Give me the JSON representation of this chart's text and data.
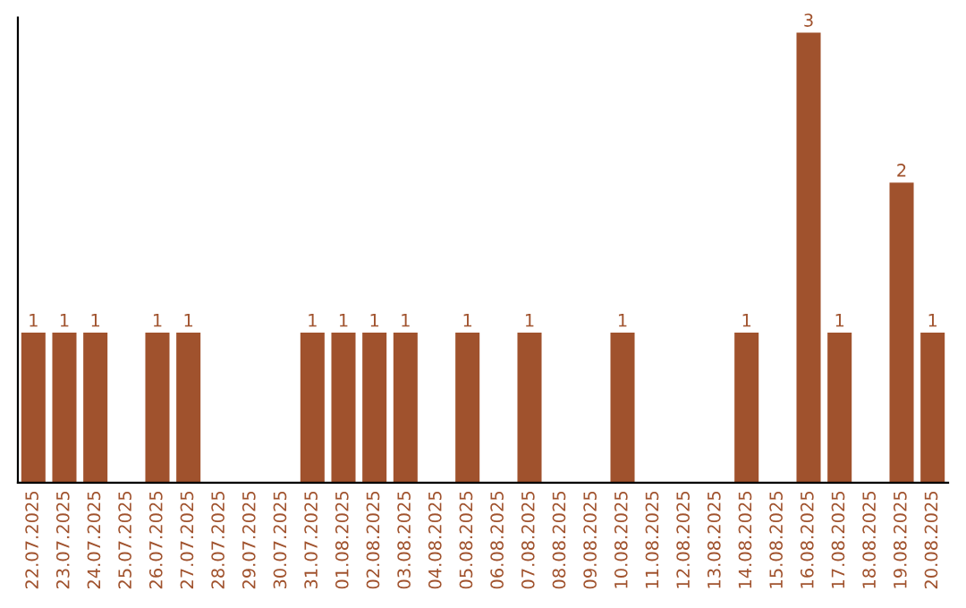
{
  "chart_data": {
    "type": "bar",
    "categories": [
      "22.07.2025",
      "23.07.2025",
      "24.07.2025",
      "25.07.2025",
      "26.07.2025",
      "27.07.2025",
      "28.07.2025",
      "29.07.2025",
      "30.07.2025",
      "31.07.2025",
      "01.08.2025",
      "02.08.2025",
      "03.08.2025",
      "04.08.2025",
      "05.08.2025",
      "06.08.2025",
      "07.08.2025",
      "08.08.2025",
      "09.08.2025",
      "10.08.2025",
      "11.08.2025",
      "12.08.2025",
      "13.08.2025",
      "14.08.2025",
      "15.08.2025",
      "16.08.2025",
      "17.08.2025",
      "18.08.2025",
      "19.08.2025",
      "20.08.2025"
    ],
    "values": [
      1,
      1,
      1,
      0,
      1,
      1,
      0,
      0,
      0,
      1,
      1,
      1,
      1,
      0,
      1,
      0,
      1,
      0,
      0,
      1,
      0,
      0,
      0,
      1,
      0,
      3,
      1,
      0,
      2,
      1
    ],
    "value_labels": [
      "1",
      "1",
      "1",
      null,
      "1",
      "1",
      null,
      null,
      null,
      "1",
      "1",
      "1",
      "1",
      null,
      "1",
      null,
      "1",
      null,
      null,
      "1",
      null,
      null,
      null,
      "1",
      null,
      "3",
      "1",
      null,
      "2",
      "1"
    ],
    "color": "#a0522d",
    "ylim": [
      0,
      3.1
    ],
    "tick_labels": "x",
    "grid": false,
    "legend": false
  }
}
